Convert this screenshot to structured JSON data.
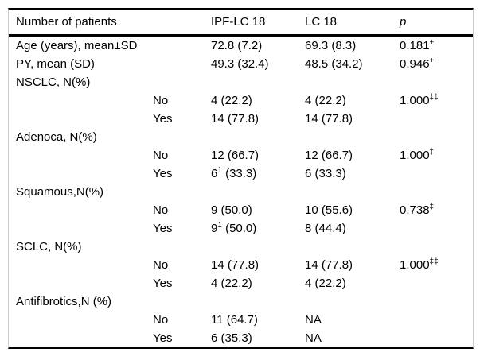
{
  "table": {
    "title_semantic": "patient-characteristics-comparison-table",
    "columns": [
      {
        "label": "Number of patients"
      },
      {
        "label": "IPF-LC 18"
      },
      {
        "label": "LC 18"
      },
      {
        "label": "p"
      }
    ],
    "rows": [
      {
        "label": "Age (years), mean±SD",
        "ipf": "72.8 (7.2)",
        "lc": "69.3 (8.3)",
        "p": {
          "text": "0.181",
          "sup": "+"
        }
      },
      {
        "label": "PY, mean (SD)",
        "ipf": "49.3 (32.4)",
        "lc": "48.5 (34.2)",
        "p": {
          "text": "0.946",
          "sup": "+"
        }
      },
      {
        "label": "NSCLC, N(%)"
      },
      {
        "sub": "No",
        "ipf": "4 (22.2)",
        "lc": "4 (22.2)",
        "p": {
          "text": "1.000",
          "sup": "‡‡"
        }
      },
      {
        "sub": "Yes",
        "ipf": "14 (77.8)",
        "lc": "14 (77.8)"
      },
      {
        "label": "Adenoca, N(%)"
      },
      {
        "sub": "No",
        "ipf": "12 (66.7)",
        "lc": "12 (66.7)",
        "p": {
          "text": "1.000",
          "sup": "‡"
        }
      },
      {
        "sub": "Yes",
        "ipf": {
          "text": "6",
          "sup": "1",
          "after": " (33.3)"
        },
        "lc": "6 (33.3)"
      },
      {
        "label": "Squamous,N(%)"
      },
      {
        "sub": "No",
        "ipf": "9 (50.0)",
        "lc": "10 (55.6)",
        "p": {
          "text": "0.738",
          "sup": "‡"
        }
      },
      {
        "sub": "Yes",
        "ipf": {
          "text": "9",
          "sup": "1",
          "after": " (50.0)"
        },
        "lc": "8 (44.4)"
      },
      {
        "label": "SCLC, N(%)"
      },
      {
        "sub": "No",
        "ipf": "14 (77.8)",
        "lc": "14 (77.8)",
        "p": {
          "text": "1.000",
          "sup": "‡‡"
        }
      },
      {
        "sub": "Yes",
        "ipf": "4 (22.2)",
        "lc": "4 (22.2)"
      },
      {
        "label": "Antifibrotics,N (%)"
      },
      {
        "sub": "No",
        "ipf": "11 (64.7)",
        "lc": "NA"
      },
      {
        "sub": "Yes",
        "ipf": "6 (35.3)",
        "lc": "NA"
      }
    ]
  },
  "colors": {
    "background": "#ffffff",
    "text": "#000000",
    "rule": "#000000",
    "side_border": "#cccccc"
  }
}
